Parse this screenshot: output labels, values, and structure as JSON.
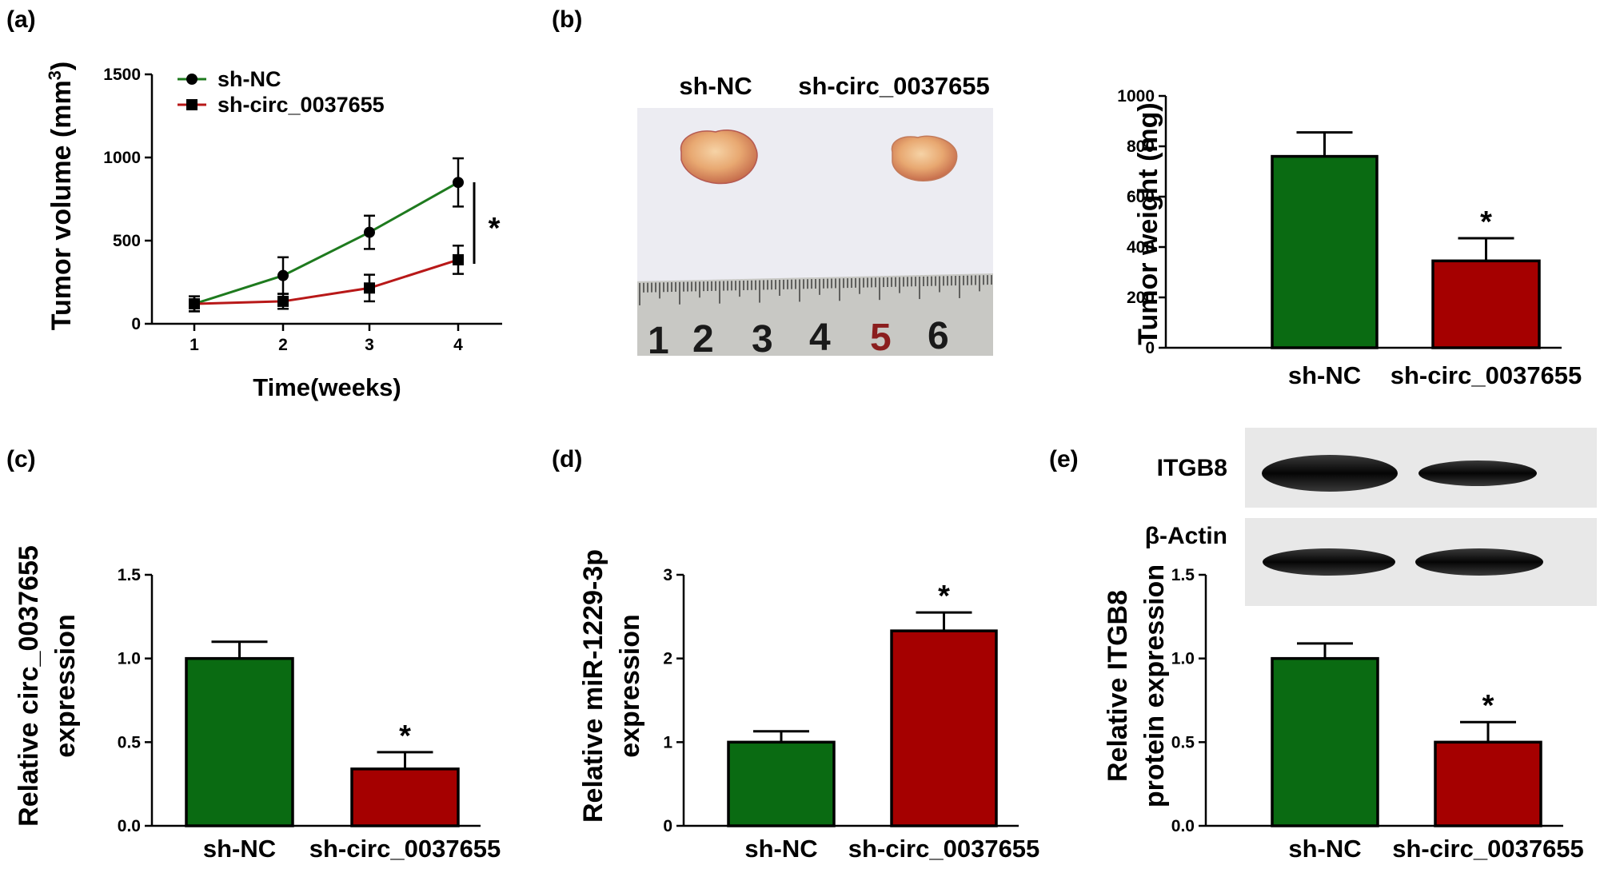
{
  "panels": {
    "a": "(a)",
    "b": "(b)",
    "c": "(c)",
    "d": "(d)",
    "e": "(e)"
  },
  "colors": {
    "green": "#0a6b12",
    "red": "#a50000",
    "line_green": "#1e7a1e",
    "line_red": "#b81818"
  },
  "photo": {
    "label_nc": "sh-NC",
    "label_kd": "sh-circ_0037655",
    "ruler_numbers": [
      "1",
      "2",
      "3",
      "4",
      "5",
      "6"
    ]
  },
  "blot": {
    "label_target": "ITGB8",
    "label_control": "β-Actin"
  },
  "chart_data": [
    {
      "id": "a",
      "type": "line",
      "ylabel": "Tumor volume (mm",
      "ylabel_sup": "3",
      "ylabel_close": ")",
      "xlabel": "Time(weeks)",
      "x": [
        1,
        2,
        3,
        4
      ],
      "xticks": [
        "1",
        "2",
        "3",
        "4"
      ],
      "yticks": [
        "0",
        "500",
        "1000",
        "1500"
      ],
      "ylim": [
        0,
        1500
      ],
      "series": [
        {
          "name": "sh-NC",
          "values": [
            120,
            290,
            550,
            850
          ],
          "errors": [
            45,
            110,
            100,
            145
          ],
          "marker": "circle"
        },
        {
          "name": "sh-circ_0037655",
          "values": [
            120,
            135,
            215,
            385
          ],
          "errors": [
            45,
            45,
            80,
            85
          ],
          "marker": "square"
        }
      ],
      "significance": "*"
    },
    {
      "id": "b",
      "type": "bar",
      "ylabel": "Tumor weight (mg)",
      "categories": [
        "sh-NC",
        "sh-circ_0037655"
      ],
      "values": [
        760,
        345
      ],
      "errors": [
        95,
        90
      ],
      "yticks": [
        "0",
        "200",
        "400",
        "600",
        "800",
        "1000"
      ],
      "ylim": [
        0,
        1000
      ],
      "significance": [
        "",
        "*"
      ]
    },
    {
      "id": "c",
      "type": "bar",
      "ylabel": [
        "Relative circ_0037655",
        "expression"
      ],
      "categories": [
        "sh-NC",
        "sh-circ_0037655"
      ],
      "values": [
        1.0,
        0.34
      ],
      "errors": [
        0.1,
        0.1
      ],
      "yticks": [
        "0.0",
        "0.5",
        "1.0",
        "1.5"
      ],
      "ylim": [
        0,
        1.5
      ],
      "significance": [
        "",
        "*"
      ]
    },
    {
      "id": "d",
      "type": "bar",
      "ylabel": [
        "Relative miR-1229-3p",
        "expression"
      ],
      "categories": [
        "sh-NC",
        "sh-circ_0037655"
      ],
      "values": [
        1.0,
        2.33
      ],
      "errors": [
        0.13,
        0.22
      ],
      "yticks": [
        "0",
        "1",
        "2",
        "3"
      ],
      "ylim": [
        0,
        3
      ],
      "significance": [
        "",
        "*"
      ]
    },
    {
      "id": "e",
      "type": "bar",
      "ylabel": [
        "Relative ITGB8",
        "protein expression"
      ],
      "categories": [
        "sh-NC",
        "sh-circ_0037655"
      ],
      "values": [
        1.0,
        0.5
      ],
      "errors": [
        0.09,
        0.12
      ],
      "yticks": [
        "0.0",
        "0.5",
        "1.0",
        "1.5"
      ],
      "ylim": [
        0,
        1.5
      ],
      "significance": [
        "",
        "*"
      ]
    }
  ]
}
